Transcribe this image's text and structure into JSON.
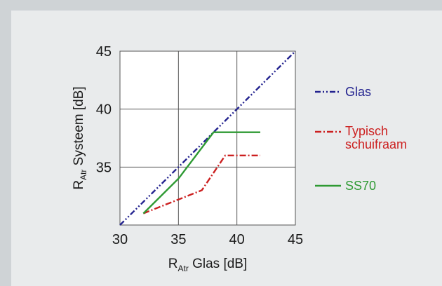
{
  "chart_data": {
    "type": "line",
    "x_axis": {
      "label_main": "R",
      "label_sub": "Atr",
      "label_rest": " Glas [dB]",
      "range": [
        30,
        45
      ],
      "ticks": [
        30,
        35,
        40,
        45
      ]
    },
    "y_axis": {
      "label_main": "R",
      "label_sub": "Atr",
      "label_rest": "  Systeem [dB]",
      "range": [
        30,
        45
      ],
      "ticks": [
        30,
        35,
        40,
        45
      ]
    },
    "grid": true,
    "legend_position": "right",
    "series": [
      {
        "name": "Glas",
        "color": "#23238f",
        "dash": "dash-dot-dot",
        "x": [
          30,
          45
        ],
        "y": [
          30,
          45
        ]
      },
      {
        "name_lines": [
          "Typisch",
          "schuifraam"
        ],
        "color": "#cc2020",
        "dash": "dash-dot",
        "x": [
          32,
          37,
          39,
          42
        ],
        "y": [
          31,
          33,
          36,
          36
        ]
      },
      {
        "name": "SS70",
        "color": "#2e9a33",
        "dash": "solid",
        "x": [
          32,
          35,
          38,
          42
        ],
        "y": [
          31,
          34,
          38,
          38
        ]
      }
    ]
  }
}
